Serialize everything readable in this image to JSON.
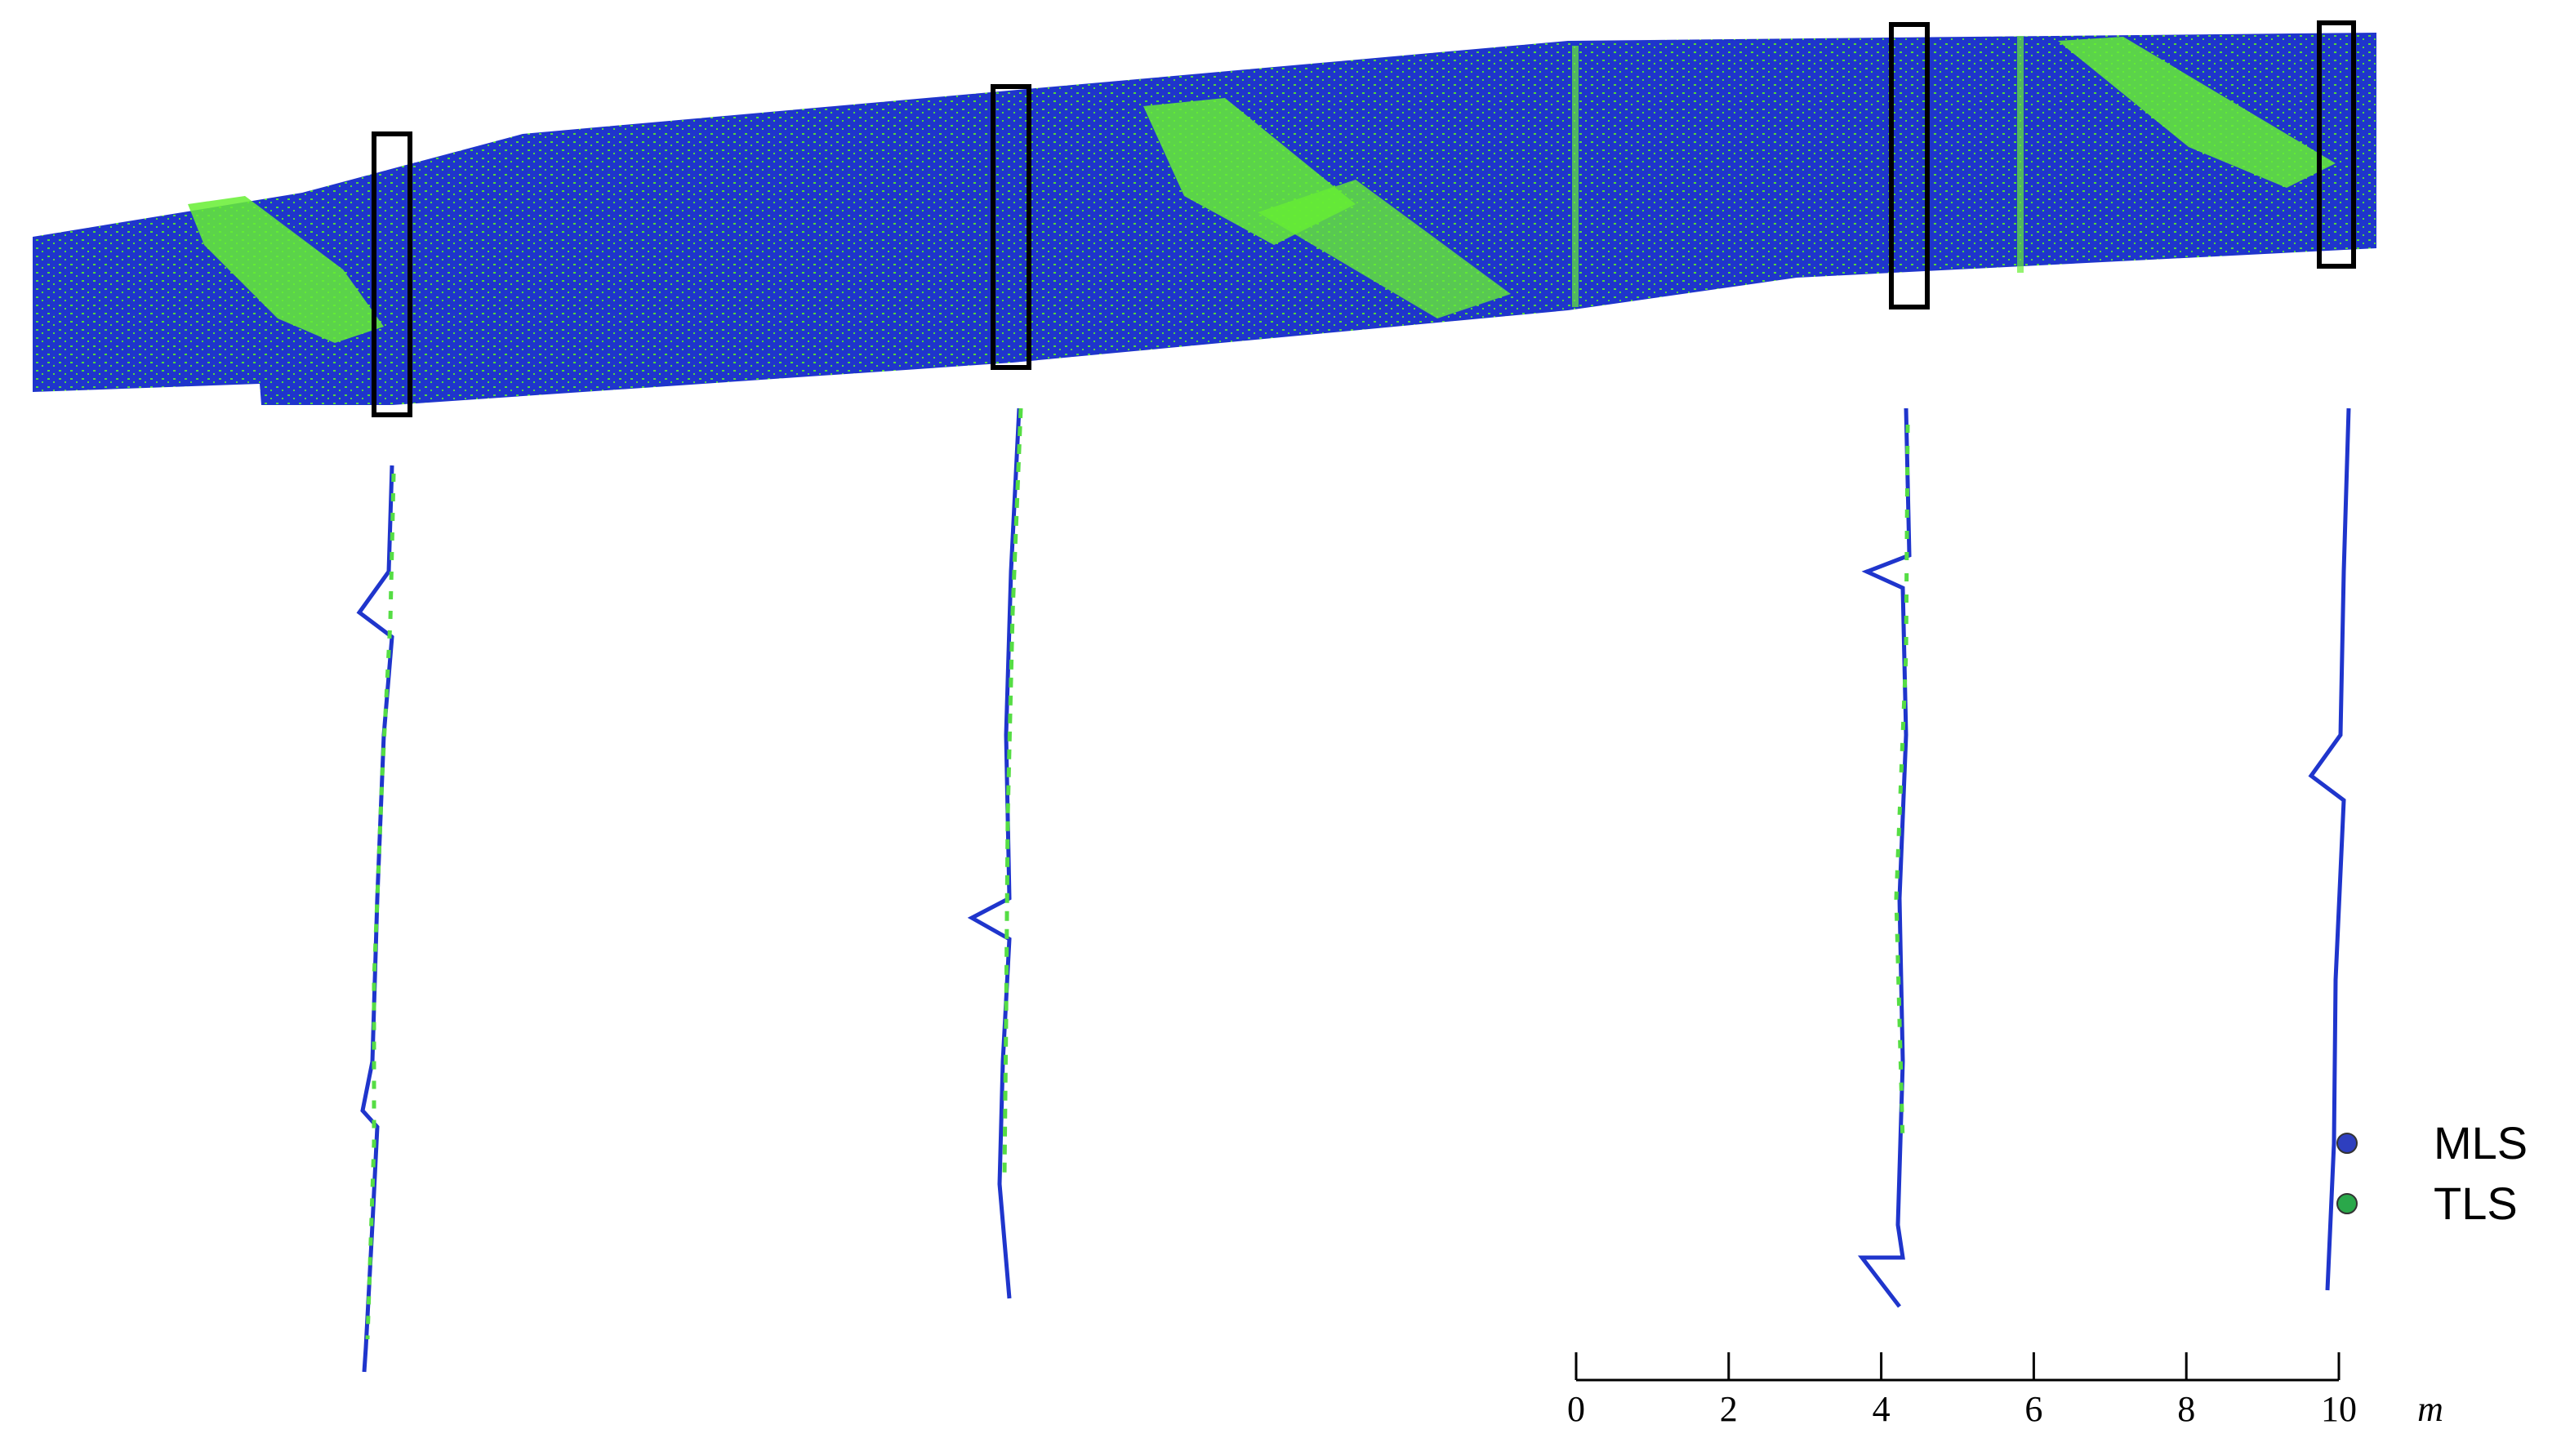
{
  "legend": [
    {
      "label": "MLS",
      "color": "#2e3fbf"
    },
    {
      "label": "TLS",
      "color": "#2aa84a"
    }
  ],
  "scale_bar": {
    "range": [
      0,
      10
    ],
    "ticks": [
      0,
      2,
      4,
      6,
      8,
      10
    ],
    "unit": "m"
  }
}
